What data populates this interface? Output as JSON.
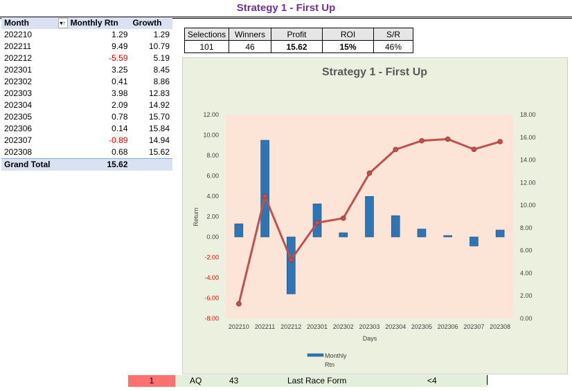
{
  "sheet_title": "Strategy 1 - First Up",
  "pivot": {
    "headers": [
      "Month",
      "Monthly Rtn",
      "Growth"
    ],
    "rows": [
      {
        "month": "202210",
        "rtn": "1.29",
        "growth": "1.29"
      },
      {
        "month": "202211",
        "rtn": "9.49",
        "growth": "10.79"
      },
      {
        "month": "202212",
        "rtn": "-5.59",
        "growth": "5.19"
      },
      {
        "month": "202301",
        "rtn": "3.25",
        "growth": "8.45"
      },
      {
        "month": "202302",
        "rtn": "0.41",
        "growth": "8.86"
      },
      {
        "month": "202303",
        "rtn": "3.98",
        "growth": "12.83"
      },
      {
        "month": "202304",
        "rtn": "2.09",
        "growth": "14.92"
      },
      {
        "month": "202305",
        "rtn": "0.78",
        "growth": "15.70"
      },
      {
        "month": "202306",
        "rtn": "0.14",
        "growth": "15.84"
      },
      {
        "month": "202307",
        "rtn": "-0.89",
        "growth": "14.94"
      },
      {
        "month": "202308",
        "rtn": "0.68",
        "growth": "15.62"
      }
    ],
    "total_label": "Grand Total",
    "total_value": "15.62"
  },
  "stats": {
    "headers": [
      "Selections",
      "Winners",
      "Profit",
      "ROI",
      "S/R"
    ],
    "values": [
      "101",
      "46",
      "15.62",
      "15%",
      "46%"
    ]
  },
  "bottom_row": {
    "num": "1",
    "code": "AQ",
    "value": "43",
    "label": "Last Race Form",
    "cond": "<4"
  },
  "colors": {
    "bar": "#2e75b6",
    "line": "#c0504d",
    "plot_bg": "#fce4d6",
    "chart_bg": "#ebf1de",
    "title": "#7030a0"
  },
  "chart_data": {
    "type": "bar",
    "title": "Strategy 1 - First Up",
    "categories": [
      "202210",
      "202211",
      "202212",
      "202301",
      "202302",
      "202303",
      "202304",
      "202305",
      "202306",
      "202307",
      "202308"
    ],
    "series": [
      {
        "name": "Monthly Rtn",
        "type": "bar",
        "axis": "left",
        "values": [
          1.29,
          9.49,
          -5.59,
          3.25,
          0.41,
          3.98,
          2.09,
          0.78,
          0.14,
          -0.89,
          0.68
        ]
      },
      {
        "name": "Growth",
        "type": "line",
        "axis": "right",
        "values": [
          1.29,
          10.79,
          5.19,
          8.45,
          8.86,
          12.83,
          14.92,
          15.7,
          15.84,
          14.94,
          15.62
        ]
      }
    ],
    "xlabel": "Days",
    "ylabel": "Return",
    "ylim": [
      -8,
      12
    ],
    "y2lim": [
      0,
      18
    ],
    "yticks": [
      "-8.00",
      "-6.00",
      "-4.00",
      "-2.00",
      "0.00",
      "2.00",
      "4.00",
      "6.00",
      "8.00",
      "10.00",
      "12.00"
    ],
    "y2ticks": [
      "0.00",
      "2.00",
      "4.00",
      "6.00",
      "8.00",
      "10.00",
      "12.00",
      "14.00",
      "16.00",
      "18.00"
    ],
    "legend": {
      "label1": "Monthly",
      "label2": "Rtn",
      "position": "bottom"
    }
  }
}
